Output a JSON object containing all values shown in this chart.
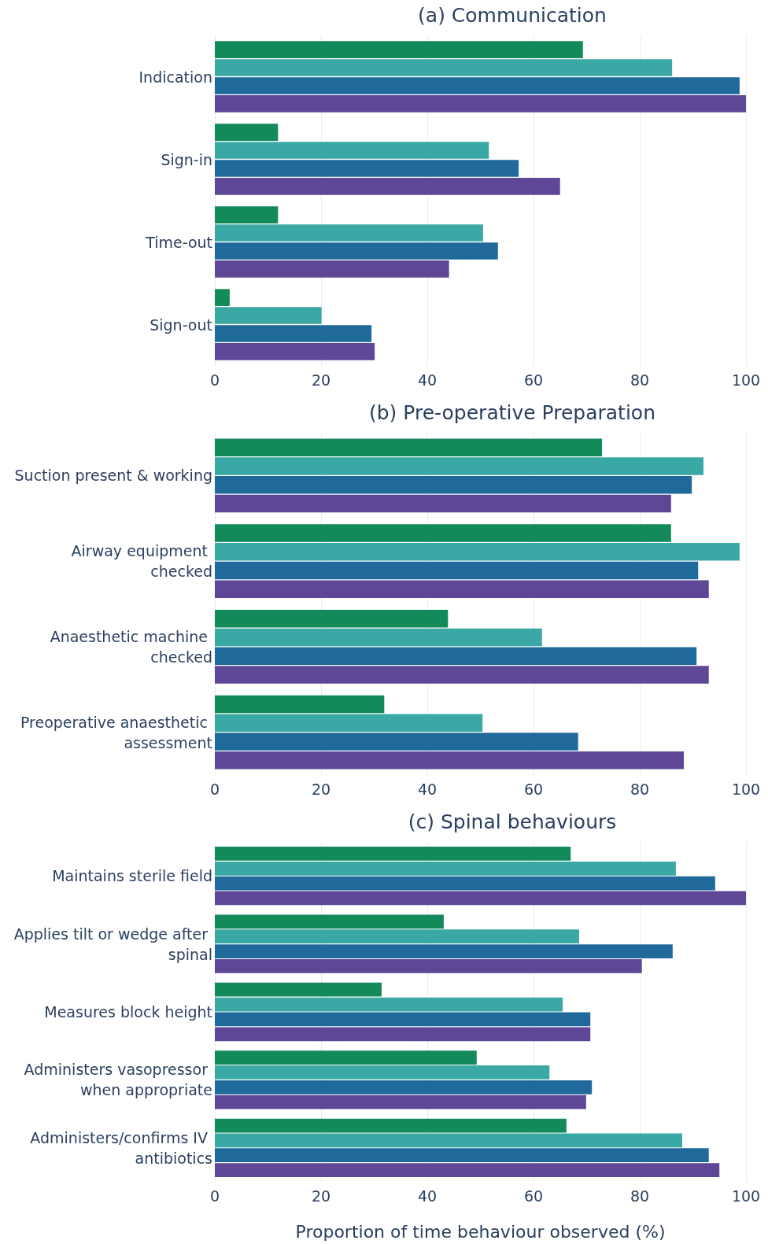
{
  "chart_data": [
    {
      "type": "bar",
      "orientation": "horizontal",
      "title": "(a) Communication",
      "categories": [
        "Indication",
        "Sign-in",
        "Time-out",
        "Sign-out"
      ],
      "series": [
        {
          "color": "#138a5a",
          "values": [
            69.3,
            11.9,
            11.9,
            2.8
          ]
        },
        {
          "color": "#3aa8a4",
          "values": [
            86.1,
            51.6,
            50.5,
            20.1
          ]
        },
        {
          "color": "#1f6a9a",
          "values": [
            98.8,
            57.2,
            53.3,
            29.5
          ]
        },
        {
          "color": "#5e4796",
          "values": [
            100,
            65.0,
            44.1,
            30.1
          ]
        }
      ],
      "xlim": [
        0,
        100
      ],
      "xticks": [
        0,
        20,
        40,
        60,
        80,
        100
      ],
      "grid": "x"
    },
    {
      "type": "bar",
      "orientation": "horizontal",
      "title": "(b) Pre-operative Preparation",
      "categories": [
        "Suction present & working",
        "Airway equipment checked",
        "Anaesthetic machine checked",
        "Preoperative anaesthetic assessment"
      ],
      "series": [
        {
          "color": "#138a5a",
          "values": [
            72.9,
            85.9,
            43.9,
            31.9
          ]
        },
        {
          "color": "#3aa8a4",
          "values": [
            92.0,
            98.8,
            61.6,
            50.4
          ]
        },
        {
          "color": "#1f6a9a",
          "values": [
            89.8,
            91.0,
            90.7,
            68.4
          ]
        },
        {
          "color": "#5e4796",
          "values": [
            85.9,
            93.0,
            93.0,
            88.3
          ]
        }
      ],
      "xlim": [
        0,
        100
      ],
      "xticks": [
        0,
        20,
        40,
        60,
        80,
        100
      ],
      "grid": "x"
    },
    {
      "type": "bar",
      "orientation": "horizontal",
      "title": "(c) Spinal behaviours",
      "xlabel": "Proportion of time behaviour observed (%)",
      "categories": [
        "Maintains sterile field",
        "Applies tilt or wedge after spinal",
        "Measures block height",
        "Administers vasopressor when appropriate",
        "Administers/confirms IV antibiotics"
      ],
      "series": [
        {
          "color": "#138a5a",
          "values": [
            67.0,
            43.1,
            31.4,
            49.3,
            66.2
          ]
        },
        {
          "color": "#3aa8a4",
          "values": [
            86.8,
            68.6,
            65.5,
            63.0,
            88.0
          ]
        },
        {
          "color": "#1f6a9a",
          "values": [
            94.2,
            86.2,
            70.7,
            71.0,
            93.0
          ]
        },
        {
          "color": "#5e4796",
          "values": [
            100,
            80.4,
            70.7,
            69.9,
            95.0
          ]
        }
      ],
      "xlim": [
        0,
        100
      ],
      "xticks": [
        0,
        20,
        40,
        60,
        80,
        100
      ],
      "grid": "x"
    }
  ]
}
